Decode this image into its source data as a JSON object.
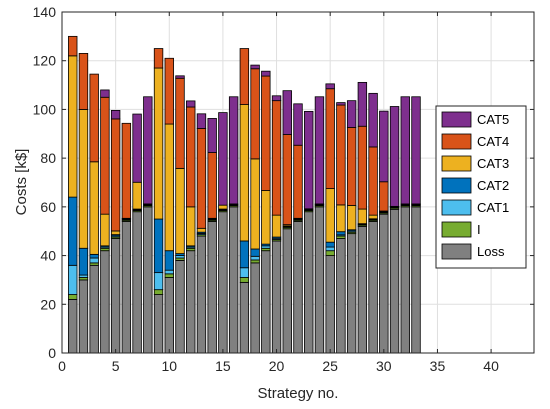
{
  "chart_data": {
    "type": "bar",
    "stacked": true,
    "xlabel": "Strategy no.",
    "ylabel": "Costs [k$]",
    "xlim": [
      0,
      44
    ],
    "ylim": [
      0,
      140
    ],
    "xticks": [
      0,
      5,
      10,
      15,
      20,
      25,
      30,
      35,
      40
    ],
    "yticks": [
      0,
      20,
      40,
      60,
      80,
      100,
      120,
      140
    ],
    "grid": true,
    "legend_position": "right-middle",
    "x": [
      1,
      2,
      3,
      4,
      5,
      6,
      7,
      8,
      9,
      10,
      11,
      12,
      13,
      14,
      15,
      16,
      17,
      18,
      19,
      20,
      21,
      22,
      23,
      24,
      25,
      26,
      27,
      28,
      29,
      30,
      31,
      32,
      33
    ],
    "series": [
      {
        "name": "Loss",
        "color": "#808080",
        "values": [
          22,
          30,
          36,
          42,
          47,
          54,
          58,
          60,
          24,
          31,
          38,
          42,
          48,
          54,
          58,
          60,
          29,
          37,
          42,
          46,
          51,
          54,
          58,
          60,
          40,
          47,
          49,
          52,
          54,
          57,
          59,
          60,
          60
        ]
      },
      {
        "name": "I",
        "color": "#77ac30",
        "values": [
          2,
          1,
          1,
          1,
          0.6,
          0.5,
          0.5,
          0.5,
          2,
          1.5,
          1,
          1,
          0.6,
          0.5,
          0.5,
          0.5,
          2,
          1.2,
          1,
          0.6,
          0.6,
          0.5,
          0.5,
          0.5,
          2,
          1,
          0.6,
          0.5,
          0.5,
          0.5,
          0.5,
          0.5,
          0.5
        ]
      },
      {
        "name": "CAT1",
        "color": "#4dbeee",
        "values": [
          12,
          1,
          2,
          0.5,
          0.5,
          0.3,
          0.3,
          0.3,
          7,
          1.5,
          1,
          0.5,
          0.5,
          0.3,
          0.3,
          0.3,
          4,
          1.5,
          1,
          0.5,
          0.3,
          0.3,
          0.3,
          0.3,
          1.5,
          0.5,
          0.5,
          0.3,
          0.3,
          0.3,
          0.3,
          0.3,
          0.3
        ]
      },
      {
        "name": "CAT2",
        "color": "#0072bd",
        "values": [
          28,
          11,
          1.5,
          0.5,
          0.5,
          0.3,
          0.3,
          0.3,
          22,
          8,
          0.8,
          0.5,
          0.5,
          0.3,
          0.3,
          0.3,
          11,
          3,
          0.7,
          0.5,
          0.3,
          0.3,
          0.3,
          0.3,
          2,
          1.3,
          0.5,
          0.3,
          0.3,
          0.3,
          0.3,
          0.3,
          0.3
        ]
      },
      {
        "name": "CAT3",
        "color": "#edb120",
        "values": [
          58,
          57,
          38,
          13,
          1.5,
          0.2,
          11,
          0.1,
          62,
          52,
          35,
          16,
          1.6,
          0.2,
          1.6,
          0.1,
          56,
          37,
          22,
          9,
          0.5,
          0.2,
          0.1,
          0.1,
          22,
          11,
          10,
          6,
          1.5,
          0.2,
          0.1,
          0.1,
          0.1
        ]
      },
      {
        "name": "CAT4",
        "color": "#d95319",
        "values": [
          8,
          23,
          36,
          48,
          46,
          39,
          0,
          0,
          8,
          27,
          37,
          41,
          41,
          27,
          0,
          0,
          23,
          37,
          47,
          47,
          37,
          30,
          0,
          0,
          41,
          41,
          32,
          34,
          28,
          12,
          0,
          0,
          0
        ]
      },
      {
        "name": "CAT5",
        "color": "#7e2f8e",
        "values": [
          0,
          0,
          0,
          3,
          3.5,
          0,
          28,
          44,
          0,
          0,
          1,
          2.5,
          6,
          14,
          38,
          44,
          0,
          1.5,
          2,
          2,
          18,
          17,
          40,
          44,
          2,
          1,
          11,
          18,
          22,
          29,
          41,
          44,
          44
        ]
      }
    ]
  }
}
